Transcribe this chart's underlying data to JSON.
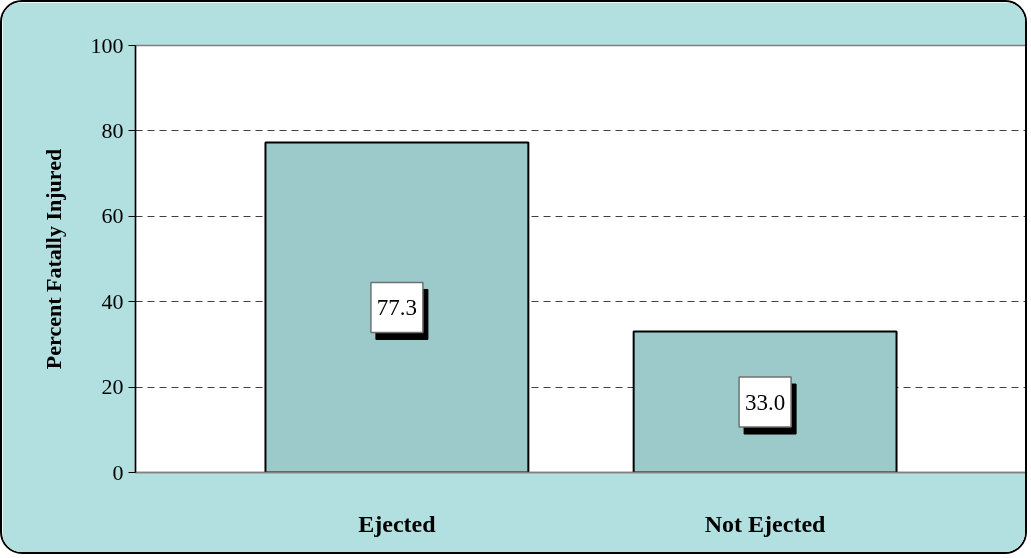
{
  "chart_data": {
    "type": "bar",
    "categories": [
      "Ejected",
      "Not Ejected"
    ],
    "values": [
      77.3,
      33.0
    ],
    "color": "#9ccaca",
    "value_labels": [
      "77.3",
      "33.0"
    ],
    "ylabel": "Percent Fatally Injured",
    "ylim": [
      0,
      100
    ],
    "yticks": [
      0,
      20,
      40,
      60,
      80,
      100
    ],
    "grid": "y"
  }
}
